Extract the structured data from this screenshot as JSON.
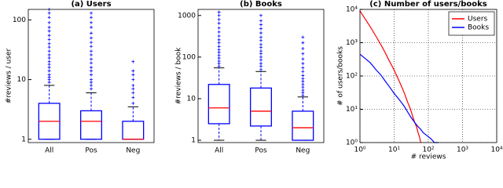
{
  "chart_data": [
    {
      "type": "box",
      "title": "(a) Users",
      "y_label": "#reviews / user",
      "log_y": true,
      "grid": false,
      "categories": [
        "All",
        "Pos",
        "Neg"
      ],
      "box_color": "#0000ff",
      "median_color": "#ff0000",
      "ylim": [
        0.88,
        150
      ],
      "yticks": [
        1,
        10,
        100
      ],
      "boxes": [
        {
          "whislo": 1,
          "q1": 1,
          "med": 2,
          "q3": 4,
          "whishi": 8,
          "fliers": [
            9,
            10,
            11,
            12,
            14,
            16,
            18,
            20,
            23,
            26,
            30,
            35,
            40,
            47,
            55,
            65,
            75,
            90,
            110,
            130,
            150
          ]
        },
        {
          "whislo": 1,
          "q1": 1,
          "med": 2,
          "q3": 3,
          "whishi": 6,
          "fliers": [
            7,
            8,
            9,
            10,
            12,
            14,
            16,
            19,
            22,
            26,
            30,
            36,
            42,
            50,
            60,
            75,
            90,
            110,
            130
          ]
        },
        {
          "whislo": 1,
          "q1": 1,
          "med": 1,
          "q3": 2,
          "whishi": 3.5,
          "fliers": [
            4,
            5,
            6,
            7,
            8,
            10,
            12,
            14,
            20
          ]
        }
      ]
    },
    {
      "type": "box",
      "title": "(b) Books",
      "y_label": "#reviews / book",
      "log_y": true,
      "grid": false,
      "categories": [
        "All",
        "Pos",
        "Neg"
      ],
      "box_color": "#0000ff",
      "median_color": "#ff0000",
      "ylim": [
        0.88,
        1400
      ],
      "yticks": [
        1,
        10,
        100,
        1000
      ],
      "boxes": [
        {
          "whislo": 1,
          "q1": 2.5,
          "med": 6,
          "q3": 22,
          "whishi": 55,
          "fliers": [
            60,
            70,
            80,
            95,
            110,
            130,
            150,
            180,
            220,
            260,
            320,
            400,
            500,
            650,
            800,
            1000,
            1200
          ]
        },
        {
          "whislo": 1,
          "q1": 2.2,
          "med": 5,
          "q3": 18,
          "whishi": 45,
          "fliers": [
            50,
            60,
            70,
            85,
            100,
            120,
            140,
            170,
            200,
            250,
            300,
            380,
            480,
            600,
            750,
            1000
          ]
        },
        {
          "whislo": 1,
          "q1": 1,
          "med": 2,
          "q3": 5,
          "whishi": 11,
          "fliers": [
            12,
            14,
            16,
            19,
            22,
            26,
            30,
            36,
            45,
            55,
            70,
            90,
            120,
            160,
            220,
            300
          ]
        }
      ]
    },
    {
      "type": "line",
      "title": "(c) Number of users/books",
      "x_label": "# reviews",
      "y_label": "# of users/books",
      "log_x": true,
      "log_y": true,
      "grid": true,
      "legend": "upper-right",
      "xlim": [
        1,
        10000
      ],
      "ylim": [
        1,
        10000
      ],
      "xticks": [
        {
          "value": 1,
          "label": "10⁰"
        },
        {
          "value": 10,
          "label": "10¹"
        },
        {
          "value": 100,
          "label": "10²"
        },
        {
          "value": 1000,
          "label": "10³"
        },
        {
          "value": 10000,
          "label": "10⁴"
        }
      ],
      "yticks": [
        {
          "value": 1,
          "label": "10⁰"
        },
        {
          "value": 10,
          "label": "10¹"
        },
        {
          "value": 100,
          "label": "10²"
        },
        {
          "value": 1000,
          "label": "10³"
        },
        {
          "value": 10000,
          "label": "10⁴"
        }
      ],
      "series": [
        {
          "name": "Users",
          "color": "#ff0000",
          "x": [
            1,
            2,
            3,
            4,
            5,
            7,
            10,
            15,
            20,
            25,
            30,
            35,
            40,
            45,
            50,
            55,
            60
          ],
          "values": [
            9000,
            3000,
            1500,
            900,
            600,
            300,
            150,
            60,
            30,
            16,
            10,
            6,
            4,
            3,
            2,
            1.5,
            1
          ]
        },
        {
          "name": "Books",
          "color": "#0000ff",
          "x": [
            1,
            2,
            3,
            4,
            5,
            7,
            10,
            15,
            20,
            30,
            40,
            50,
            60,
            70,
            80,
            100,
            120,
            150,
            200
          ],
          "values": [
            450,
            250,
            150,
            110,
            80,
            50,
            30,
            18,
            12,
            6,
            4,
            3,
            2.5,
            2,
            1.8,
            1.5,
            1.3,
            1,
            1
          ]
        }
      ]
    }
  ]
}
